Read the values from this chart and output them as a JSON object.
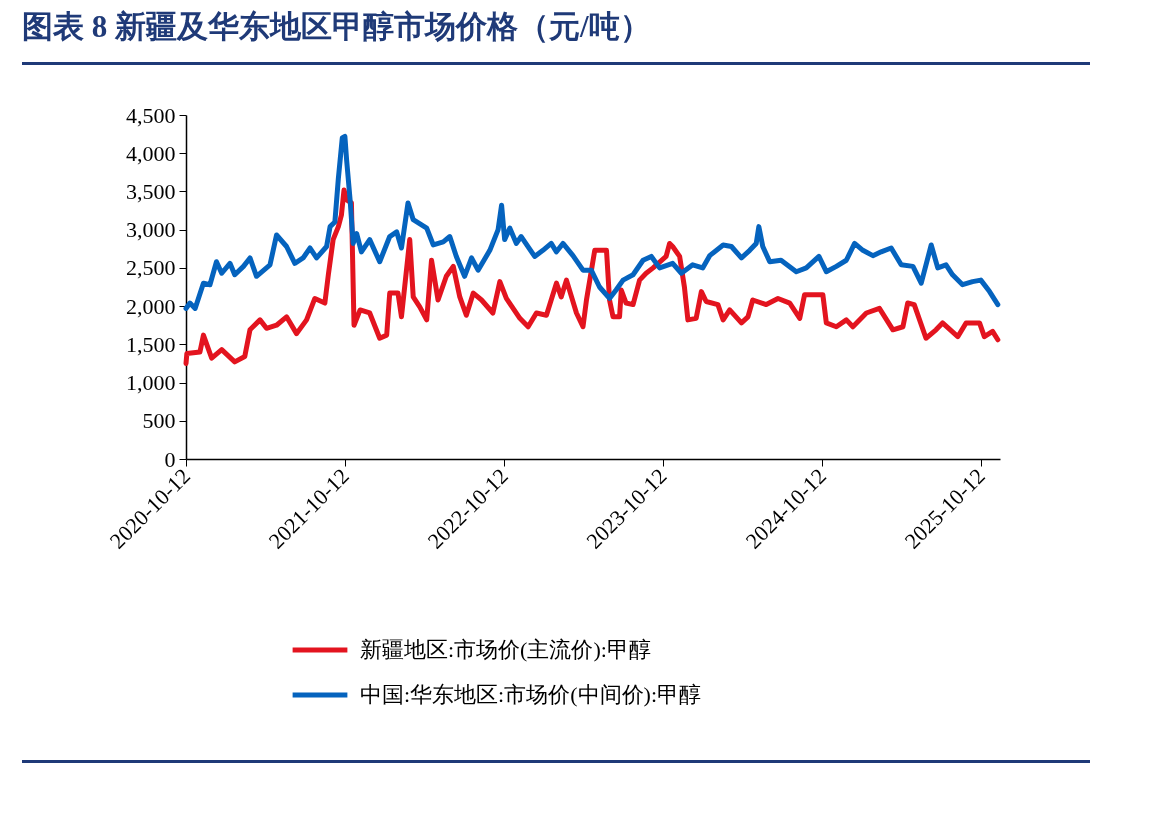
{
  "chart_data": {
    "type": "line",
    "title": "图表 8 新疆及华东地区甲醇市场价格（元/吨）",
    "xlim": [
      "2020-10-12",
      "2025-11-25"
    ],
    "xticks": [
      "2020-10-12",
      "2021-10-12",
      "2022-10-12",
      "2023-10-12",
      "2024-10-12",
      "2025-10-12"
    ],
    "ylim": [
      0,
      4500
    ],
    "yticks": [
      {
        "value": 0,
        "label": "0"
      },
      {
        "value": 500,
        "label": "500"
      },
      {
        "value": 1000,
        "label": "1,000"
      },
      {
        "value": 1500,
        "label": "1,500"
      },
      {
        "value": 2000,
        "label": "2,000"
      },
      {
        "value": 2500,
        "label": "2,500"
      },
      {
        "value": 3000,
        "label": "3,000"
      },
      {
        "value": 3500,
        "label": "3,500"
      },
      {
        "value": 4000,
        "label": "4,000"
      },
      {
        "value": 4500,
        "label": "4,500"
      }
    ],
    "legend": "bottom",
    "series": [
      {
        "name": "新疆地区:市场价(主流价):甲醇",
        "color": "#e3141f",
        "x": [
          "2020-10-12",
          "2020-10-14",
          "2020-11-13",
          "2020-11-21",
          "2020-12-10",
          "2021-01-02",
          "2021-02-01",
          "2021-02-24",
          "2021-03-08",
          "2021-03-31",
          "2021-04-15",
          "2021-05-08",
          "2021-05-31",
          "2021-06-23",
          "2021-07-16",
          "2021-08-04",
          "2021-08-27",
          "2021-09-04",
          "2021-09-15",
          "2021-09-27",
          "2021-10-04",
          "2021-10-10",
          "2021-10-16",
          "2021-10-27",
          "2021-11-02",
          "2021-11-16",
          "2021-12-08",
          "2021-12-31",
          "2022-01-16",
          "2022-01-23",
          "2022-02-11",
          "2022-02-19",
          "2022-03-10",
          "2022-03-18",
          "2022-04-02",
          "2022-04-18",
          "2022-04-29",
          "2022-05-14",
          "2022-06-02",
          "2022-06-18",
          "2022-07-03",
          "2022-07-18",
          "2022-08-03",
          "2022-08-22",
          "2022-09-17",
          "2022-10-03",
          "2022-10-18",
          "2022-11-18",
          "2022-12-07",
          "2022-12-26",
          "2023-01-18",
          "2023-02-10",
          "2023-02-21",
          "2023-03-05",
          "2023-03-28",
          "2023-04-12",
          "2023-04-20",
          "2023-05-09",
          "2023-06-05",
          "2023-06-12",
          "2023-06-20",
          "2023-07-05",
          "2023-07-09",
          "2023-07-20",
          "2023-08-05",
          "2023-08-20",
          "2023-09-04",
          "2023-09-20",
          "2023-10-20",
          "2023-10-28",
          "2023-11-04",
          "2023-11-20",
          "2023-12-01",
          "2023-12-09",
          "2023-12-28",
          "2024-01-09",
          "2024-01-20",
          "2024-02-16",
          "2024-02-28",
          "2024-03-14",
          "2024-04-10",
          "2024-04-25",
          "2024-05-06",
          "2024-06-06",
          "2024-07-03",
          "2024-07-30",
          "2024-08-22",
          "2024-09-02",
          "2024-10-14",
          "2024-10-22",
          "2024-11-14",
          "2024-12-07",
          "2024-12-22",
          "2025-01-22",
          "2025-02-21",
          "2025-03-24",
          "2025-04-16",
          "2025-04-27",
          "2025-05-12",
          "2025-06-08",
          "2025-07-01",
          "2025-07-16",
          "2025-08-20",
          "2025-09-08",
          "2025-10-09",
          "2025-10-20",
          "2025-11-08",
          "2025-11-20"
        ],
        "values": [
          1250,
          1380,
          1400,
          1620,
          1320,
          1430,
          1270,
          1340,
          1690,
          1820,
          1710,
          1750,
          1860,
          1640,
          1820,
          2100,
          2040,
          2410,
          2870,
          3040,
          3190,
          3520,
          3390,
          3350,
          1750,
          1950,
          1910,
          1580,
          1620,
          2170,
          2170,
          1860,
          2870,
          2120,
          1990,
          1820,
          2600,
          2080,
          2390,
          2520,
          2120,
          1880,
          2170,
          2080,
          1910,
          2320,
          2100,
          1840,
          1730,
          1910,
          1880,
          2300,
          2120,
          2340,
          1910,
          1730,
          2080,
          2730,
          2730,
          2080,
          1860,
          1860,
          2210,
          2040,
          2020,
          2340,
          2430,
          2500,
          2650,
          2820,
          2780,
          2650,
          2250,
          1820,
          1840,
          2190,
          2060,
          2020,
          1820,
          1950,
          1780,
          1860,
          2080,
          2020,
          2100,
          2040,
          1840,
          2150,
          2150,
          1780,
          1730,
          1820,
          1730,
          1910,
          1970,
          1690,
          1730,
          2040,
          2020,
          1580,
          1690,
          1780,
          1600,
          1780,
          1780,
          1600,
          1670,
          1560
        ]
      },
      {
        "name": "中国:华东地区:市场价(中间价):甲醇",
        "color": "#0563be",
        "x": [
          "2020-10-12",
          "2020-10-21",
          "2020-11-02",
          "2020-11-21",
          "2020-12-06",
          "2020-12-21",
          "2021-01-02",
          "2021-01-21",
          "2021-02-01",
          "2021-02-21",
          "2021-03-08",
          "2021-03-23",
          "2021-04-23",
          "2021-05-08",
          "2021-05-31",
          "2021-06-19",
          "2021-07-08",
          "2021-07-24",
          "2021-08-08",
          "2021-08-31",
          "2021-09-08",
          "2021-09-19",
          "2021-09-27",
          "2021-10-06",
          "2021-10-12",
          "2021-10-16",
          "2021-10-24",
          "2021-10-31",
          "2021-11-08",
          "2021-11-19",
          "2021-12-08",
          "2021-12-31",
          "2022-01-23",
          "2022-02-08",
          "2022-02-19",
          "2022-03-06",
          "2022-03-18",
          "2022-04-18",
          "2022-05-03",
          "2022-05-26",
          "2022-06-10",
          "2022-06-25",
          "2022-07-14",
          "2022-07-30",
          "2022-08-14",
          "2022-09-10",
          "2022-09-29",
          "2022-10-07",
          "2022-10-14",
          "2022-10-26",
          "2022-11-10",
          "2022-11-21",
          "2022-12-22",
          "2023-01-10",
          "2023-01-29",
          "2023-02-10",
          "2023-02-25",
          "2023-03-20",
          "2023-04-12",
          "2023-05-01",
          "2023-05-20",
          "2023-06-12",
          "2023-06-27",
          "2023-07-13",
          "2023-08-05",
          "2023-08-28",
          "2023-09-16",
          "2023-10-05",
          "2023-11-04",
          "2023-11-24",
          "2023-12-20",
          "2024-01-12",
          "2024-01-28",
          "2024-02-28",
          "2024-03-18",
          "2024-04-10",
          "2024-04-29",
          "2024-05-14",
          "2024-05-20",
          "2024-05-29",
          "2024-06-14",
          "2024-07-10",
          "2024-08-14",
          "2024-09-06",
          "2024-10-05",
          "2024-10-22",
          "2024-11-14",
          "2024-12-07",
          "2024-12-26",
          "2025-01-14",
          "2025-02-06",
          "2025-02-25",
          "2025-03-20",
          "2025-04-12",
          "2025-05-09",
          "2025-05-28",
          "2025-06-20",
          "2025-07-05",
          "2025-07-24",
          "2025-08-08",
          "2025-08-31",
          "2025-09-23",
          "2025-10-12",
          "2025-11-01",
          "2025-11-20"
        ],
        "values": [
          1970,
          2040,
          1970,
          2300,
          2280,
          2580,
          2430,
          2560,
          2410,
          2520,
          2630,
          2390,
          2540,
          2930,
          2780,
          2560,
          2630,
          2760,
          2630,
          2780,
          3040,
          3100,
          3670,
          4200,
          4220,
          3910,
          3390,
          2820,
          2950,
          2710,
          2870,
          2580,
          2910,
          2970,
          2760,
          3350,
          3130,
          3020,
          2800,
          2840,
          2910,
          2650,
          2390,
          2630,
          2470,
          2730,
          3000,
          3320,
          2870,
          3020,
          2820,
          2910,
          2650,
          2730,
          2820,
          2710,
          2820,
          2660,
          2470,
          2470,
          2250,
          2100,
          2210,
          2340,
          2410,
          2600,
          2650,
          2500,
          2560,
          2430,
          2540,
          2500,
          2660,
          2800,
          2780,
          2630,
          2730,
          2820,
          3040,
          2780,
          2580,
          2600,
          2450,
          2500,
          2650,
          2450,
          2520,
          2600,
          2820,
          2730,
          2660,
          2710,
          2760,
          2540,
          2520,
          2300,
          2800,
          2500,
          2540,
          2410,
          2280,
          2320,
          2340,
          2190,
          2020
        ]
      }
    ]
  }
}
